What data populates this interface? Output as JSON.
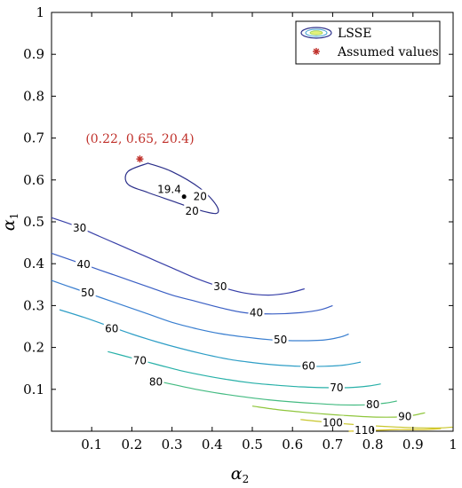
{
  "chart_data": {
    "type": "contour",
    "xlabel": "α",
    "xlabel_sub": "2",
    "ylabel": "α",
    "ylabel_sub": "1",
    "xlim": [
      0,
      1
    ],
    "ylim": [
      0,
      1
    ],
    "x_ticks": [
      "0.1",
      "0.2",
      "0.3",
      "0.4",
      "0.5",
      "0.6",
      "0.7",
      "0.8",
      "0.9",
      "1"
    ],
    "y_ticks": [
      "0.1",
      "0.2",
      "0.3",
      "0.4",
      "0.5",
      "0.6",
      "0.7",
      "0.8",
      "0.9",
      "1"
    ],
    "grid": false,
    "legend": {
      "position": "top-right",
      "entries": [
        "LSSE",
        "Assumed values"
      ]
    },
    "colors": {
      "assumed_marker": "#c0312b",
      "annotation": "#c0312b"
    },
    "minimum": {
      "x": 0.33,
      "y": 0.56,
      "label": "19.4"
    },
    "assumed": {
      "x": 0.22,
      "y": 0.65,
      "label": "(0.22, 0.65, 20.4)"
    },
    "contours": [
      {
        "level": 20,
        "color": "#2b2f8a",
        "closed": true,
        "points": [
          [
            0.24,
            0.64
          ],
          [
            0.3,
            0.62
          ],
          [
            0.37,
            0.58
          ],
          [
            0.41,
            0.54
          ],
          [
            0.41,
            0.52
          ],
          [
            0.36,
            0.53
          ],
          [
            0.3,
            0.55
          ],
          [
            0.24,
            0.57
          ],
          [
            0.19,
            0.59
          ],
          [
            0.19,
            0.62
          ],
          [
            0.24,
            0.64
          ]
        ],
        "labels": [
          {
            "text": "20",
            "x": 0.37,
            "y": 0.56
          },
          {
            "text": "20",
            "x": 0.35,
            "y": 0.525
          }
        ]
      },
      {
        "level": 30,
        "color": "#3840a8",
        "closed": false,
        "points": [
          [
            0.0,
            0.51
          ],
          [
            0.06,
            0.49
          ],
          [
            0.12,
            0.465
          ],
          [
            0.18,
            0.44
          ],
          [
            0.24,
            0.415
          ],
          [
            0.3,
            0.39
          ],
          [
            0.36,
            0.365
          ],
          [
            0.42,
            0.345
          ],
          [
            0.48,
            0.33
          ],
          [
            0.54,
            0.325
          ],
          [
            0.59,
            0.33
          ],
          [
            0.63,
            0.34
          ]
        ],
        "labels": [
          {
            "text": "30",
            "x": 0.07,
            "y": 0.485
          },
          {
            "text": "30",
            "x": 0.42,
            "y": 0.345
          }
        ]
      },
      {
        "level": 40,
        "color": "#3a5fc4",
        "closed": false,
        "points": [
          [
            0.0,
            0.425
          ],
          [
            0.06,
            0.405
          ],
          [
            0.12,
            0.385
          ],
          [
            0.18,
            0.365
          ],
          [
            0.24,
            0.345
          ],
          [
            0.3,
            0.325
          ],
          [
            0.36,
            0.31
          ],
          [
            0.42,
            0.295
          ],
          [
            0.48,
            0.283
          ],
          [
            0.55,
            0.28
          ],
          [
            0.62,
            0.283
          ],
          [
            0.67,
            0.29
          ],
          [
            0.7,
            0.3
          ]
        ],
        "labels": [
          {
            "text": "40",
            "x": 0.08,
            "y": 0.398
          },
          {
            "text": "40",
            "x": 0.51,
            "y": 0.283
          }
        ]
      },
      {
        "level": 50,
        "color": "#3a7fd0",
        "closed": false,
        "points": [
          [
            0.0,
            0.36
          ],
          [
            0.06,
            0.34
          ],
          [
            0.12,
            0.32
          ],
          [
            0.18,
            0.3
          ],
          [
            0.24,
            0.28
          ],
          [
            0.3,
            0.26
          ],
          [
            0.36,
            0.245
          ],
          [
            0.42,
            0.233
          ],
          [
            0.48,
            0.225
          ],
          [
            0.55,
            0.218
          ],
          [
            0.62,
            0.216
          ],
          [
            0.68,
            0.218
          ],
          [
            0.72,
            0.225
          ],
          [
            0.74,
            0.232
          ]
        ],
        "labels": [
          {
            "text": "50",
            "x": 0.09,
            "y": 0.33
          },
          {
            "text": "50",
            "x": 0.57,
            "y": 0.218
          }
        ]
      },
      {
        "level": 60,
        "color": "#2e9ec6",
        "closed": false,
        "points": [
          [
            0.02,
            0.29
          ],
          [
            0.08,
            0.272
          ],
          [
            0.14,
            0.252
          ],
          [
            0.2,
            0.232
          ],
          [
            0.26,
            0.214
          ],
          [
            0.32,
            0.198
          ],
          [
            0.38,
            0.184
          ],
          [
            0.44,
            0.172
          ],
          [
            0.5,
            0.164
          ],
          [
            0.56,
            0.158
          ],
          [
            0.62,
            0.155
          ],
          [
            0.68,
            0.155
          ],
          [
            0.73,
            0.158
          ],
          [
            0.77,
            0.165
          ]
        ],
        "labels": [
          {
            "text": "60",
            "x": 0.15,
            "y": 0.245
          },
          {
            "text": "60",
            "x": 0.64,
            "y": 0.156
          }
        ]
      },
      {
        "level": 70,
        "color": "#27b0a8",
        "closed": false,
        "points": [
          [
            0.14,
            0.19
          ],
          [
            0.2,
            0.175
          ],
          [
            0.26,
            0.16
          ],
          [
            0.32,
            0.145
          ],
          [
            0.38,
            0.133
          ],
          [
            0.44,
            0.123
          ],
          [
            0.5,
            0.115
          ],
          [
            0.56,
            0.11
          ],
          [
            0.62,
            0.106
          ],
          [
            0.68,
            0.104
          ],
          [
            0.74,
            0.104
          ],
          [
            0.79,
            0.108
          ],
          [
            0.82,
            0.113
          ]
        ],
        "labels": [
          {
            "text": "70",
            "x": 0.22,
            "y": 0.168
          },
          {
            "text": "70",
            "x": 0.71,
            "y": 0.104
          }
        ]
      },
      {
        "level": 80,
        "color": "#44bb82",
        "closed": false,
        "points": [
          [
            0.24,
            0.125
          ],
          [
            0.3,
            0.112
          ],
          [
            0.36,
            0.1
          ],
          [
            0.42,
            0.09
          ],
          [
            0.48,
            0.082
          ],
          [
            0.54,
            0.075
          ],
          [
            0.6,
            0.07
          ],
          [
            0.66,
            0.066
          ],
          [
            0.72,
            0.063
          ],
          [
            0.78,
            0.063
          ],
          [
            0.83,
            0.067
          ],
          [
            0.86,
            0.072
          ]
        ],
        "labels": [
          {
            "text": "80",
            "x": 0.26,
            "y": 0.118
          },
          {
            "text": "80",
            "x": 0.8,
            "y": 0.064
          }
        ]
      },
      {
        "level": 90,
        "color": "#8fc63c",
        "closed": false,
        "points": [
          [
            0.5,
            0.06
          ],
          [
            0.56,
            0.052
          ],
          [
            0.62,
            0.046
          ],
          [
            0.68,
            0.041
          ],
          [
            0.74,
            0.037
          ],
          [
            0.8,
            0.034
          ],
          [
            0.86,
            0.034
          ],
          [
            0.9,
            0.038
          ],
          [
            0.93,
            0.044
          ]
        ],
        "labels": [
          {
            "text": "90",
            "x": 0.88,
            "y": 0.035
          }
        ]
      },
      {
        "level": 100,
        "color": "#c8c62c",
        "closed": false,
        "points": [
          [
            0.62,
            0.028
          ],
          [
            0.68,
            0.022
          ],
          [
            0.74,
            0.017
          ],
          [
            0.8,
            0.013
          ],
          [
            0.86,
            0.01
          ],
          [
            0.92,
            0.008
          ],
          [
            0.97,
            0.008
          ],
          [
            1.0,
            0.01
          ]
        ],
        "labels": [
          {
            "text": "100",
            "x": 0.7,
            "y": 0.02
          }
        ]
      },
      {
        "level": 110,
        "color": "#d8c41e",
        "closed": false,
        "points": [
          [
            0.74,
            0.0
          ],
          [
            0.8,
            0.002
          ],
          [
            0.86,
            0.004
          ],
          [
            0.92,
            0.004
          ],
          [
            0.97,
            0.006
          ]
        ],
        "labels": [
          {
            "text": "110",
            "x": 0.78,
            "y": 0.002
          }
        ]
      }
    ]
  }
}
